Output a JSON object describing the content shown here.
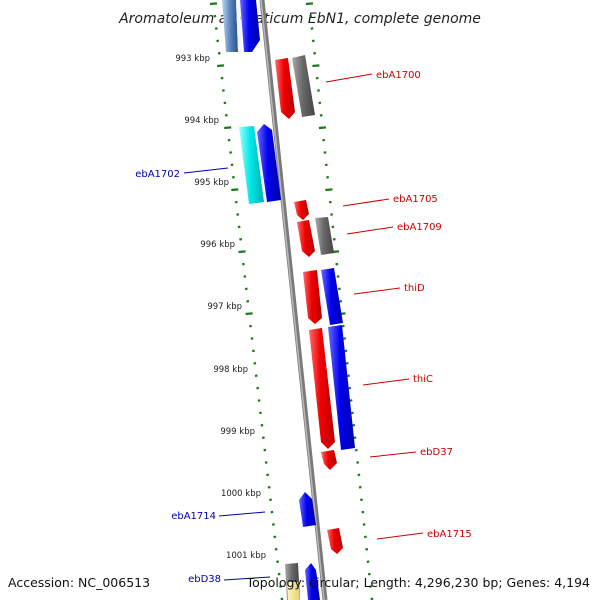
{
  "title": "Aromatoleum aromaticum EbN1, complete genome",
  "accession": "Accession: NC_006513",
  "topology": "Topology: circular; Length: 4,296,230 bp; Genes: 4,194",
  "kbp_labels": [
    "993 kbp",
    "994 kbp",
    "995 kbp",
    "996 kbp",
    "997 kbp",
    "998 kbp",
    "999 kbp",
    "1000 kbp",
    "1001 kbp"
  ],
  "gene_labels": [
    {
      "text": "ebA1700",
      "side": "right",
      "color": "#cc0000"
    },
    {
      "text": "ebA1702",
      "side": "left",
      "color": "#0000aa"
    },
    {
      "text": "ebA1705",
      "side": "right",
      "color": "#cc0000"
    },
    {
      "text": "ebA1709",
      "side": "right",
      "color": "#cc0000"
    },
    {
      "text": "thiD",
      "side": "right",
      "color": "#cc0000"
    },
    {
      "text": "thiC",
      "side": "right",
      "color": "#cc0000"
    },
    {
      "text": "ebD37",
      "side": "right",
      "color": "#cc0000"
    },
    {
      "text": "ebA1714",
      "side": "left",
      "color": "#0000aa"
    },
    {
      "text": "ebA1715",
      "side": "right",
      "color": "#cc0000"
    },
    {
      "text": "ebD38",
      "side": "left",
      "color": "#0000aa"
    }
  ],
  "colors": {
    "backbone": "#7a7a7a",
    "ticks": "#1a7a1a",
    "forward": "#ee0000",
    "reverse": "#0000ee",
    "other": "#6a6a6a",
    "rna": "#00dddd"
  }
}
